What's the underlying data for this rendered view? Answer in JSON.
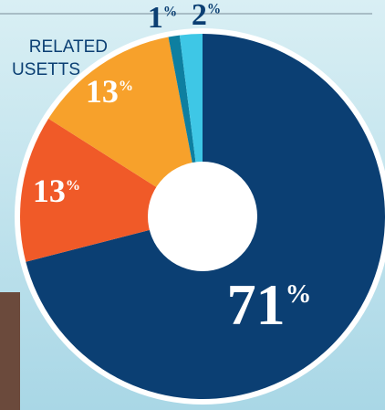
{
  "chart_data": {
    "type": "donut",
    "annotations": [
      "RELATED",
      "USETTS"
    ],
    "categories": [
      null,
      null,
      null,
      null,
      null
    ],
    "values": [
      71,
      13,
      13,
      1,
      2
    ],
    "value_labels": [
      "71%",
      "13%",
      "13%",
      "1%",
      "2%"
    ],
    "colors": [
      "#0b3f73",
      "#f05a28",
      "#f7a12b",
      "#0e7fa0",
      "#3ec7e6"
    ]
  }
}
